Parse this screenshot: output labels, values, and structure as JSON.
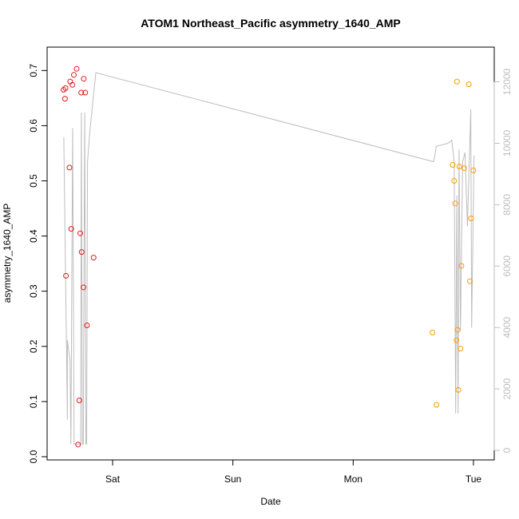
{
  "chart_data": {
    "type": "scatter",
    "title": "ATOM1 Northeast_Pacific asymmetry_1640_AMP",
    "xlabel": "Date",
    "ylabel": "asymmetry_1640_AMP",
    "x_tick_labels": [
      "Sat",
      "Sun",
      "Mon",
      "Tue"
    ],
    "x_ticks": [
      1,
      2,
      3,
      4
    ],
    "xlim": [
      0.545,
      4.08
    ],
    "ylim": [
      0,
      0.72
    ],
    "y_ticks": [
      0.0,
      0.1,
      0.2,
      0.3,
      0.4,
      0.5,
      0.6,
      0.7
    ],
    "y_tick_labels": [
      "0.0",
      "0.1",
      "0.2",
      "0.3",
      "0.4",
      "0.5",
      "0.6",
      "0.7"
    ],
    "y2lim": [
      0,
      12500
    ],
    "y2_ticks": [
      0,
      2000,
      4000,
      6000,
      8000,
      10000,
      12000
    ],
    "y2_tick_labels": [
      "0",
      "2000",
      "4000",
      "6000",
      "8000",
      "10000",
      "12000"
    ],
    "grid": false,
    "colors": {
      "series_red": "#e41a1c",
      "series_orange": "#ff9900",
      "line_gray": "#bdbdbd",
      "axis": "#000000"
    },
    "series": [
      {
        "color": "red",
        "points": [
          [
            0.592,
            0.665
          ],
          [
            0.604,
            0.649
          ],
          [
            0.609,
            0.668
          ],
          [
            0.612,
            0.328
          ],
          [
            0.641,
            0.524
          ],
          [
            0.647,
            0.68
          ],
          [
            0.656,
            0.413
          ],
          [
            0.666,
            0.674
          ],
          [
            0.678,
            0.692
          ],
          [
            0.701,
            0.703
          ],
          [
            0.713,
            0.022
          ],
          [
            0.723,
            0.102
          ],
          [
            0.731,
            0.405
          ],
          [
            0.739,
            0.66
          ],
          [
            0.743,
            0.371
          ],
          [
            0.758,
            0.307
          ],
          [
            0.76,
            0.685
          ],
          [
            0.772,
            0.66
          ],
          [
            0.787,
            0.238
          ],
          [
            0.842,
            0.361
          ]
        ]
      },
      {
        "color": "orange",
        "points": [
          [
            3.659,
            0.225
          ],
          [
            3.692,
            0.094
          ],
          [
            3.827,
            0.529
          ],
          [
            3.84,
            0.5
          ],
          [
            3.848,
            0.459
          ],
          [
            3.859,
            0.211
          ],
          [
            3.863,
            0.68
          ],
          [
            3.868,
            0.23
          ],
          [
            3.875,
            0.121
          ],
          [
            3.882,
            0.526
          ],
          [
            3.892,
            0.196
          ],
          [
            3.9,
            0.346
          ],
          [
            3.922,
            0.523
          ],
          [
            3.961,
            0.675
          ],
          [
            3.97,
            0.318
          ],
          [
            3.979,
            0.432
          ],
          [
            3.999,
            0.519
          ]
        ]
      },
      {
        "color": "gray",
        "axis": "right",
        "line": [
          [
            0.594,
            10200
          ],
          [
            0.624,
            1000
          ],
          [
            0.624,
            3600
          ],
          [
            0.646,
            2900
          ],
          [
            0.653,
            200
          ],
          [
            0.668,
            10500
          ],
          [
            0.68,
            200
          ],
          [
            0.734,
            200
          ],
          [
            0.74,
            11000
          ],
          [
            0.748,
            200
          ],
          [
            0.756,
            200
          ],
          [
            0.768,
            11000
          ],
          [
            0.778,
            200
          ],
          [
            0.784,
            200
          ],
          [
            0.791,
            9400
          ],
          [
            0.811,
            10400
          ],
          [
            0.86,
            12300
          ],
          [
            3.668,
            9400
          ],
          [
            3.68,
            9600
          ],
          [
            3.69,
            9900
          ],
          [
            3.79,
            10000
          ],
          [
            3.82,
            10100
          ],
          [
            3.84,
            9400
          ],
          [
            3.852,
            1200
          ],
          [
            3.862,
            8300
          ],
          [
            3.872,
            1200
          ],
          [
            3.88,
            9800
          ],
          [
            3.892,
            3900
          ],
          [
            3.91,
            9400
          ],
          [
            3.93,
            9700
          ],
          [
            3.95,
            7300
          ],
          [
            3.978,
            11100
          ],
          [
            3.985,
            4000
          ],
          [
            4.005,
            9600
          ]
        ]
      }
    ]
  }
}
